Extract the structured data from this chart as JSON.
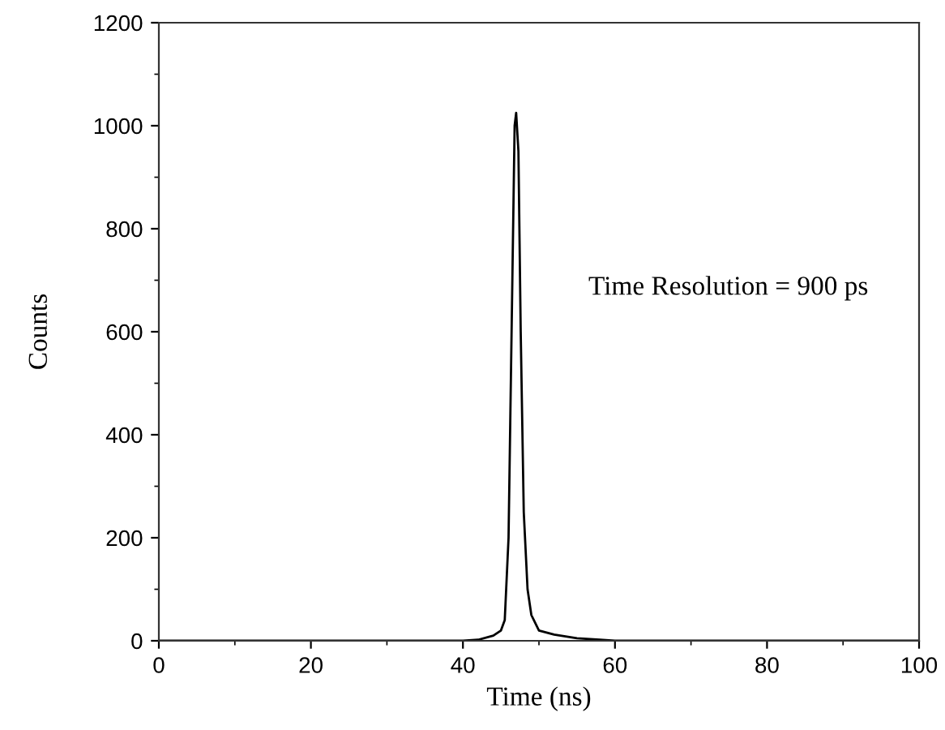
{
  "chart_data": {
    "type": "line",
    "xlabel": "Time (ns)",
    "ylabel": "Counts",
    "annotations": [
      "Time Resolution = 900 ps"
    ],
    "series": [
      {
        "color": "#000000",
        "x": [
          0,
          10,
          20,
          30,
          40,
          42,
          44,
          45,
          45.5,
          46,
          46.5,
          46.8,
          47,
          47.3,
          47.6,
          48,
          48.5,
          49,
          50,
          52,
          55,
          58,
          60,
          70,
          80,
          90,
          100
        ],
        "values": [
          0,
          0,
          0,
          0,
          0,
          2,
          10,
          20,
          40,
          200,
          700,
          1000,
          1025,
          950,
          600,
          250,
          100,
          50,
          20,
          12,
          5,
          2,
          0,
          0,
          0,
          0,
          0
        ]
      }
    ],
    "xlim": [
      0,
      100
    ],
    "ylim": [
      0,
      1200
    ],
    "xticks": [
      0,
      20,
      40,
      60,
      80,
      100
    ],
    "yticks": [
      0,
      200,
      400,
      600,
      800,
      1000,
      1200
    ],
    "grid": false,
    "legend": false,
    "marker": "none",
    "line_style": "solid"
  }
}
